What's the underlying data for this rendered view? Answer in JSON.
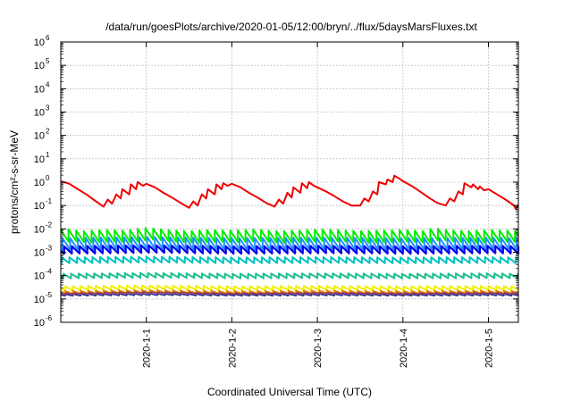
{
  "chart_data": {
    "type": "line",
    "title": "/data/run/goesPlots/archive/2020-01-05/12:00/bryn/../flux/5daysMarsFluxes.txt",
    "xlabel": "Coordinated Universal Time (UTC)",
    "ylabel": "protons/cm²-s-sr-MeV",
    "yscale": "log",
    "ylim": [
      1e-06,
      1000000.0
    ],
    "xlim": [
      0.0,
      5.35
    ],
    "x_ticks": [
      {
        "label": "2020-1-1",
        "value": 1.0
      },
      {
        "label": "2020-1-2",
        "value": 2.0
      },
      {
        "label": "2020-1-3",
        "value": 3.0
      },
      {
        "label": "2020-1-4",
        "value": 4.0
      },
      {
        "label": "2020-1-5",
        "value": 5.0
      }
    ],
    "y_ticks": [
      {
        "base": "10",
        "exp": "-6",
        "value": 1e-06
      },
      {
        "base": "10",
        "exp": "-5",
        "value": 1e-05
      },
      {
        "base": "10",
        "exp": "-4",
        "value": 0.0001
      },
      {
        "base": "10",
        "exp": "-3",
        "value": 0.001
      },
      {
        "base": "10",
        "exp": "-2",
        "value": 0.01
      },
      {
        "base": "10",
        "exp": "-1",
        "value": 0.1
      },
      {
        "base": "10",
        "exp": "0",
        "value": 1
      },
      {
        "base": "10",
        "exp": "1",
        "value": 10
      },
      {
        "base": "10",
        "exp": "2",
        "value": 100
      },
      {
        "base": "10",
        "exp": "3",
        "value": 1000
      },
      {
        "base": "10",
        "exp": "4",
        "value": 10000
      },
      {
        "base": "10",
        "exp": "5",
        "value": 100000
      },
      {
        "base": "10",
        "exp": "6",
        "value": 1000000
      }
    ],
    "grid": true,
    "series": [
      {
        "color": "#ee0000",
        "width": 2.0,
        "x": [
          0,
          0.1,
          0.2,
          0.3,
          0.4,
          0.5,
          0.55,
          0.6,
          0.65,
          0.7,
          0.72,
          0.8,
          0.82,
          0.88,
          0.9,
          0.96,
          1.0,
          1.1,
          1.2,
          1.3,
          1.4,
          1.5,
          1.55,
          1.6,
          1.65,
          1.7,
          1.72,
          1.8,
          1.82,
          1.88,
          1.9,
          1.95,
          2.0,
          2.1,
          2.2,
          2.3,
          2.4,
          2.5,
          2.55,
          2.6,
          2.65,
          2.7,
          2.72,
          2.8,
          2.82,
          2.88,
          2.9,
          2.96,
          3.0,
          3.1,
          3.2,
          3.3,
          3.4,
          3.5,
          3.55,
          3.6,
          3.65,
          3.7,
          3.72,
          3.8,
          3.82,
          3.88,
          3.9,
          3.96,
          4.0,
          4.1,
          4.2,
          4.3,
          4.4,
          4.5,
          4.55,
          4.6,
          4.65,
          4.7,
          4.72,
          4.8,
          4.82,
          4.88,
          4.9,
          4.95,
          5.0,
          5.1,
          5.2,
          5.3,
          5.32,
          5.35
        ],
        "y": [
          1.1,
          0.85,
          0.5,
          0.3,
          0.16,
          0.09,
          0.18,
          0.12,
          0.3,
          0.2,
          0.5,
          0.3,
          0.8,
          0.5,
          1.0,
          0.7,
          0.85,
          0.6,
          0.35,
          0.22,
          0.13,
          0.08,
          0.15,
          0.1,
          0.3,
          0.2,
          0.5,
          0.3,
          0.8,
          0.5,
          0.9,
          0.7,
          0.85,
          0.6,
          0.35,
          0.22,
          0.13,
          0.09,
          0.18,
          0.12,
          0.35,
          0.22,
          0.6,
          0.35,
          0.9,
          0.55,
          1.0,
          0.7,
          0.6,
          0.4,
          0.25,
          0.15,
          0.1,
          0.1,
          0.2,
          0.15,
          0.4,
          0.3,
          1.0,
          0.8,
          1.3,
          1.0,
          1.9,
          1.4,
          1.1,
          0.7,
          0.4,
          0.22,
          0.13,
          0.1,
          0.2,
          0.15,
          0.4,
          0.3,
          0.9,
          0.6,
          0.8,
          0.5,
          0.65,
          0.45,
          0.5,
          0.3,
          0.18,
          0.1,
          0.07,
          0.11
        ]
      },
      {
        "color": "#00ee00",
        "width": 2.0,
        "x": [
          0,
          0.05,
          0.25,
          0.5,
          0.75,
          1.0,
          1.25,
          1.5,
          1.75,
          2.0,
          2.25,
          2.5,
          2.75,
          3.0,
          3.25,
          3.5,
          3.75,
          4.0,
          4.25,
          4.35,
          4.5,
          4.75,
          5.0,
          5.25,
          5.35
        ],
        "y": [
          0.009,
          0.01,
          0.008,
          0.009,
          0.0085,
          0.011,
          0.009,
          0.008,
          0.009,
          0.0085,
          0.0095,
          0.008,
          0.0085,
          0.0095,
          0.009,
          0.008,
          0.0085,
          0.009,
          0.008,
          0.011,
          0.009,
          0.008,
          0.009,
          0.0085,
          0.008
        ],
        "sawtooth": {
          "period": 0.09,
          "depth": 0.5,
          "phase": 0.0
        }
      },
      {
        "color": "#1e90ff",
        "width": 2.0,
        "x": [
          0,
          1,
          2,
          3,
          4,
          5,
          5.35
        ],
        "y": [
          0.004,
          0.0045,
          0.004,
          0.0042,
          0.004,
          0.0042,
          0.004
        ],
        "sawtooth": {
          "period": 0.09,
          "depth": 0.5,
          "phase": 0.02
        }
      },
      {
        "color": "#0000ee",
        "width": 2.2,
        "x": [
          0,
          1,
          2,
          3,
          4,
          5,
          5.35
        ],
        "y": [
          0.0018,
          0.002,
          0.0018,
          0.0019,
          0.0018,
          0.0019,
          0.0018
        ],
        "sawtooth": {
          "period": 0.09,
          "depth": 0.32,
          "phase": 0.04
        }
      },
      {
        "color": "#00c0c0",
        "width": 2.0,
        "x": [
          0,
          1,
          2,
          3,
          4,
          5,
          5.35
        ],
        "y": [
          0.0006,
          0.00065,
          0.0006,
          0.00062,
          0.0006,
          0.00062,
          0.0006
        ],
        "sawtooth": {
          "period": 0.09,
          "depth": 0.25,
          "phase": 0.01
        }
      },
      {
        "color": "#20c090",
        "width": 2.0,
        "x": [
          0,
          1,
          2,
          3,
          4,
          5,
          5.35
        ],
        "y": [
          0.00012,
          0.00013,
          0.00012,
          0.000125,
          0.00012,
          0.000125,
          0.00012
        ],
        "sawtooth": {
          "period": 0.09,
          "depth": 0.2,
          "phase": 0.03
        }
      },
      {
        "color": "#f0f000",
        "width": 2.0,
        "x": [
          0,
          1,
          2,
          3,
          4,
          5,
          5.35
        ],
        "y": [
          3.5e-05,
          3.8e-05,
          3.5e-05,
          3.6e-05,
          3.5e-05,
          3.6e-05,
          3.5e-05
        ],
        "sawtooth": {
          "period": 0.09,
          "depth": 0.18,
          "phase": 0.05
        }
      },
      {
        "color": "#f08000",
        "width": 1.8,
        "x": [
          0,
          1,
          2,
          3,
          4,
          5,
          5.35
        ],
        "y": [
          2.2e-05,
          2.4e-05,
          2.2e-05,
          2.3e-05,
          2.2e-05,
          2.3e-05,
          2.2e-05
        ],
        "sawtooth": {
          "period": 0.09,
          "depth": 0.12,
          "phase": 0.05
        }
      },
      {
        "color": "#303090",
        "width": 1.8,
        "x": [
          0,
          1,
          2,
          3,
          4,
          5,
          5.35
        ],
        "y": [
          1.6e-05,
          1.7e-05,
          1.6e-05,
          1.65e-05,
          1.6e-05,
          1.65e-05,
          1.6e-05
        ],
        "sawtooth": {
          "period": 0.09,
          "depth": 0.07,
          "phase": 0.05
        }
      },
      {
        "color": "#904060",
        "width": 1.8,
        "x": [
          0,
          1,
          2,
          3,
          4,
          5,
          5.35
        ],
        "y": [
          1.8e-05,
          2e-05,
          1.8e-05,
          1.9e-05,
          1.8e-05,
          1.9e-05,
          1.8e-05
        ],
        "sawtooth": {
          "period": 0.09,
          "depth": 0.06,
          "phase": 0.06
        }
      }
    ]
  }
}
